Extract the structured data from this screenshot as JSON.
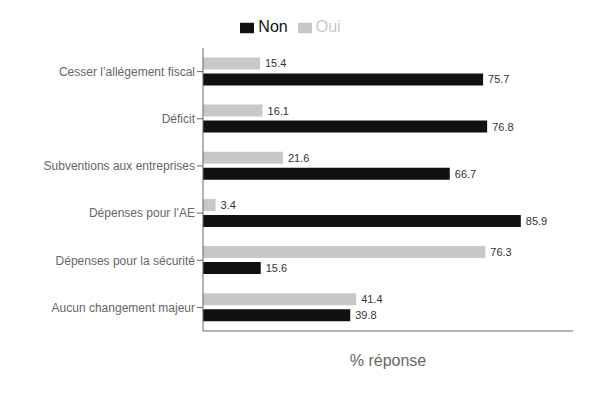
{
  "chart_data": {
    "type": "bar",
    "orientation": "horizontal",
    "categories": [
      "Cesser l’allégement fiscal",
      "Déficit",
      "Subventions aux entreprises",
      "Dépenses pour l’AE",
      "Dépenses pour la sécurité",
      "Aucun changement majeur"
    ],
    "series": [
      {
        "name": "Oui",
        "color": "#c8c8c8",
        "values": [
          15.4,
          16.1,
          21.6,
          3.4,
          76.3,
          41.4
        ]
      },
      {
        "name": "Non",
        "color": "#111111",
        "values": [
          75.7,
          76.8,
          66.7,
          85.9,
          15.6,
          39.8
        ]
      }
    ],
    "xlabel": "% réponse",
    "xlim": [
      0,
      100
    ],
    "data_labels": true,
    "tick_labels": "y",
    "grid": false,
    "legend": "top"
  }
}
